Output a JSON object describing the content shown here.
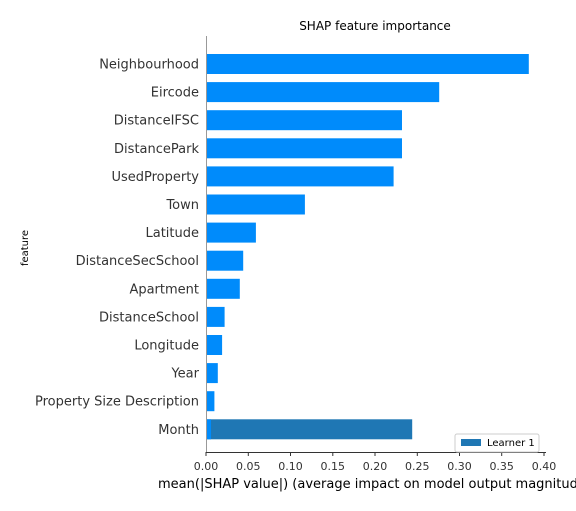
{
  "chart_data": {
    "type": "bar",
    "orientation": "horizontal",
    "title": "SHAP feature importance",
    "xlabel": "mean(|SHAP value|) (average impact on model output magnitude)",
    "ylabel": "feature",
    "xlim": [
      0,
      0.4
    ],
    "xticks": [
      "0.00",
      "0.05",
      "0.10",
      "0.15",
      "0.20",
      "0.25",
      "0.30",
      "0.35",
      "0.40"
    ],
    "tick_values": [
      0,
      0.05,
      0.1,
      0.15,
      0.2,
      0.25,
      0.3,
      0.35,
      0.4
    ],
    "categories": [
      "Neighbourhood",
      "Eircode",
      "DistanceIFSC",
      "DistancePark",
      "UsedProperty",
      "Town",
      "Latitude",
      "DistanceSecSchool",
      "Apartment",
      "DistanceSchool",
      "Longitude",
      "Year",
      "Property Size Description",
      "Month"
    ],
    "series": [
      {
        "name": "Learner 1",
        "values": [
          0.382,
          0.276,
          0.232,
          0.232,
          0.222,
          0.117,
          0.059,
          0.044,
          0.04,
          0.022,
          0.019,
          0.014,
          0.01,
          0.244
        ]
      }
    ],
    "legend_placement": "bottom-right",
    "grid": false,
    "colors": {
      "bar": "#008bfb",
      "legend_bar": "#1f77b4",
      "highlight_bar": "#1f77b4"
    }
  }
}
